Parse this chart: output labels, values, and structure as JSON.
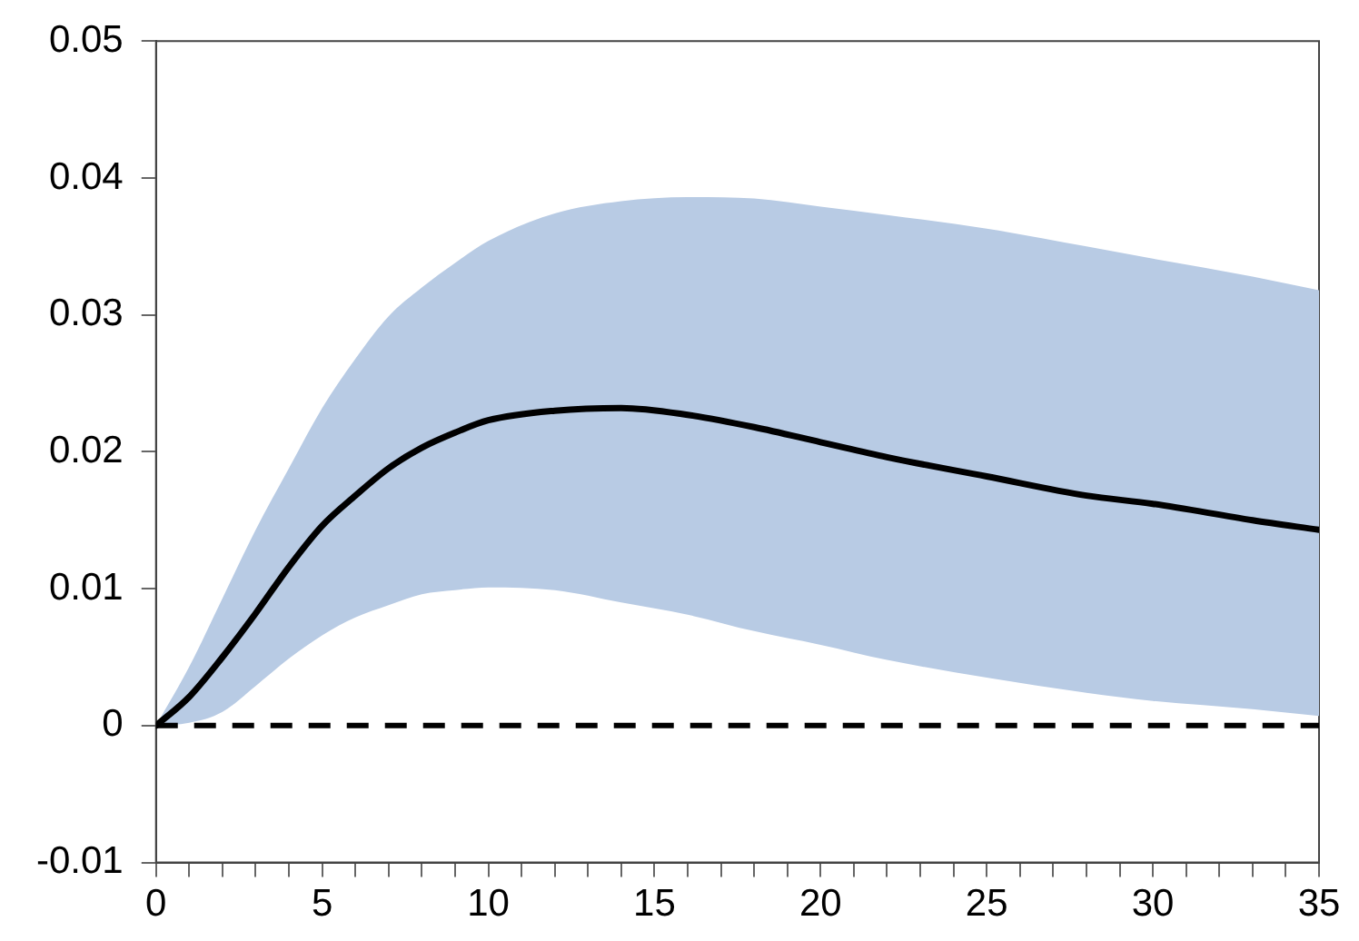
{
  "chart_data": {
    "type": "line",
    "x": [
      0,
      1,
      2,
      3,
      4,
      5,
      6,
      7,
      8,
      9,
      10,
      12,
      14,
      16,
      18,
      20,
      22,
      25,
      28,
      30,
      33,
      35
    ],
    "series": [
      {
        "color": "#000000",
        "values": [
          0,
          0.0021,
          0.005,
          0.0082,
          0.0116,
          0.0146,
          0.0168,
          0.0188,
          0.0203,
          0.0214,
          0.0223,
          0.023,
          0.0232,
          0.0227,
          0.0218,
          0.0207,
          0.0196,
          0.0182,
          0.0168,
          0.0162,
          0.015,
          0.0143
        ],
        "upper": [
          0,
          0.0043,
          0.0093,
          0.0143,
          0.0188,
          0.0232,
          0.0268,
          0.0299,
          0.032,
          0.0338,
          0.0354,
          0.0374,
          0.0383,
          0.0386,
          0.0385,
          0.0379,
          0.0373,
          0.0363,
          0.035,
          0.0341,
          0.0328,
          0.0318
        ],
        "lower": [
          0,
          0.0002,
          0.001,
          0.0029,
          0.0049,
          0.0066,
          0.0079,
          0.0088,
          0.0096,
          0.0099,
          0.0101,
          0.0099,
          0.009,
          0.0081,
          0.0069,
          0.0059,
          0.0048,
          0.0035,
          0.0024,
          0.0018,
          0.0012,
          0.0007
        ]
      }
    ],
    "xlim": [
      0,
      35
    ],
    "xticks": [
      0,
      {
        "value": 1,
        "label": null
      },
      {
        "value": 2,
        "label": null
      },
      {
        "value": 3,
        "label": null
      },
      {
        "value": 4,
        "label": null
      },
      5,
      {
        "value": 6,
        "label": null
      },
      {
        "value": 7,
        "label": null
      },
      {
        "value": 8,
        "label": null
      },
      {
        "value": 9,
        "label": null
      },
      10,
      {
        "value": 11,
        "label": null
      },
      {
        "value": 12,
        "label": null
      },
      {
        "value": 13,
        "label": null
      },
      {
        "value": 14,
        "label": null
      },
      15,
      {
        "value": 16,
        "label": null
      },
      {
        "value": 17,
        "label": null
      },
      {
        "value": 18,
        "label": null
      },
      {
        "value": 19,
        "label": null
      },
      20,
      {
        "value": 21,
        "label": null
      },
      {
        "value": 22,
        "label": null
      },
      {
        "value": 23,
        "label": null
      },
      {
        "value": 24,
        "label": null
      },
      25,
      {
        "value": 26,
        "label": null
      },
      {
        "value": 27,
        "label": null
      },
      {
        "value": 28,
        "label": null
      },
      {
        "value": 29,
        "label": null
      },
      30,
      {
        "value": 31,
        "label": null
      },
      {
        "value": 32,
        "label": null
      },
      {
        "value": 33,
        "label": null
      },
      {
        "value": 34,
        "label": null
      },
      35
    ],
    "ylim": [
      -0.01,
      0.05
    ],
    "yticks": [
      {
        "value": -0.01,
        "label": "-0.01"
      },
      {
        "value": 0,
        "label": "0"
      },
      {
        "value": 0.01,
        "label": "0.01"
      },
      {
        "value": 0.02,
        "label": "0.02"
      },
      {
        "value": 0.03,
        "label": "0.03"
      },
      {
        "value": 0.04,
        "label": "0.04"
      },
      {
        "value": 0.05,
        "label": "0.05"
      }
    ],
    "grid": false,
    "legend": false,
    "marker": "none",
    "line_style": "solid",
    "ref_lines": [
      {
        "axis": "y",
        "value": 0,
        "color": "#000000",
        "line_style": "dashed"
      }
    ]
  }
}
